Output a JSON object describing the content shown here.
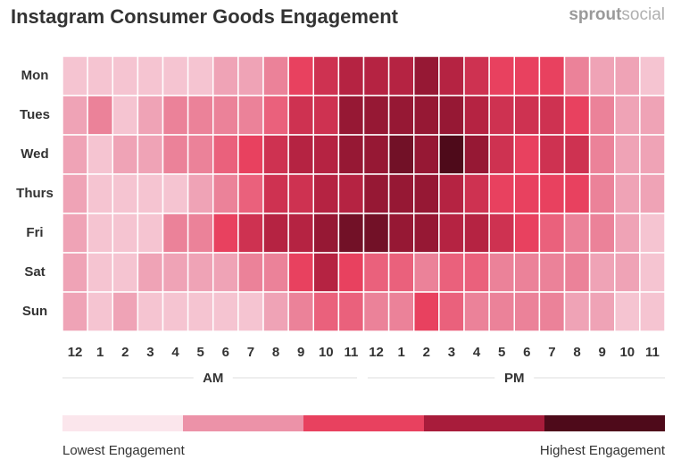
{
  "chart_data": {
    "type": "heatmap",
    "title": "Instagram Consumer Goods Engagement",
    "logo": {
      "bold": "sprout",
      "light": "social"
    },
    "rows": [
      "Mon",
      "Tues",
      "Wed",
      "Thurs",
      "Fri",
      "Sat",
      "Sun"
    ],
    "columns": [
      "12",
      "1",
      "2",
      "3",
      "4",
      "5",
      "6",
      "7",
      "8",
      "9",
      "10",
      "11",
      "12",
      "1",
      "2",
      "3",
      "4",
      "5",
      "6",
      "7",
      "8",
      "9",
      "10",
      "11"
    ],
    "column_groups": [
      "AM",
      "PM"
    ],
    "z": [
      [
        1,
        1,
        1,
        1,
        1,
        1,
        2,
        2,
        3,
        5,
        6,
        7,
        7,
        7,
        8,
        7,
        6,
        5,
        5,
        5,
        3,
        2,
        2,
        1
      ],
      [
        2,
        3,
        1,
        2,
        3,
        3,
        3,
        3,
        4,
        6,
        6,
        8,
        8,
        8,
        8,
        8,
        7,
        6,
        6,
        6,
        5,
        3,
        2,
        2
      ],
      [
        2,
        1,
        2,
        2,
        3,
        3,
        4,
        5,
        6,
        7,
        7,
        8,
        8,
        9,
        8,
        10,
        8,
        6,
        5,
        6,
        6,
        3,
        2,
        2
      ],
      [
        2,
        1,
        1,
        1,
        1,
        2,
        3,
        4,
        6,
        6,
        7,
        7,
        8,
        8,
        8,
        7,
        6,
        5,
        5,
        5,
        5,
        3,
        2,
        2
      ],
      [
        2,
        1,
        1,
        1,
        3,
        3,
        5,
        6,
        7,
        7,
        8,
        9,
        9,
        8,
        8,
        7,
        7,
        6,
        5,
        4,
        3,
        3,
        2,
        1
      ],
      [
        2,
        1,
        1,
        2,
        2,
        2,
        2,
        3,
        3,
        5,
        7,
        5,
        4,
        4,
        3,
        4,
        4,
        3,
        3,
        3,
        3,
        2,
        2,
        1
      ],
      [
        2,
        1,
        2,
        1,
        1,
        1,
        1,
        1,
        2,
        3,
        4,
        4,
        3,
        3,
        5,
        4,
        3,
        3,
        3,
        3,
        2,
        2,
        1,
        1
      ]
    ],
    "zlim": [
      0,
      10
    ],
    "colors": [
      "#fbe6ec",
      "#ec92a8",
      "#e8415f",
      "#a81c3b",
      "#4e0a1a"
    ],
    "legend_low": "Lowest Engagement",
    "legend_high": "Highest Engagement"
  }
}
